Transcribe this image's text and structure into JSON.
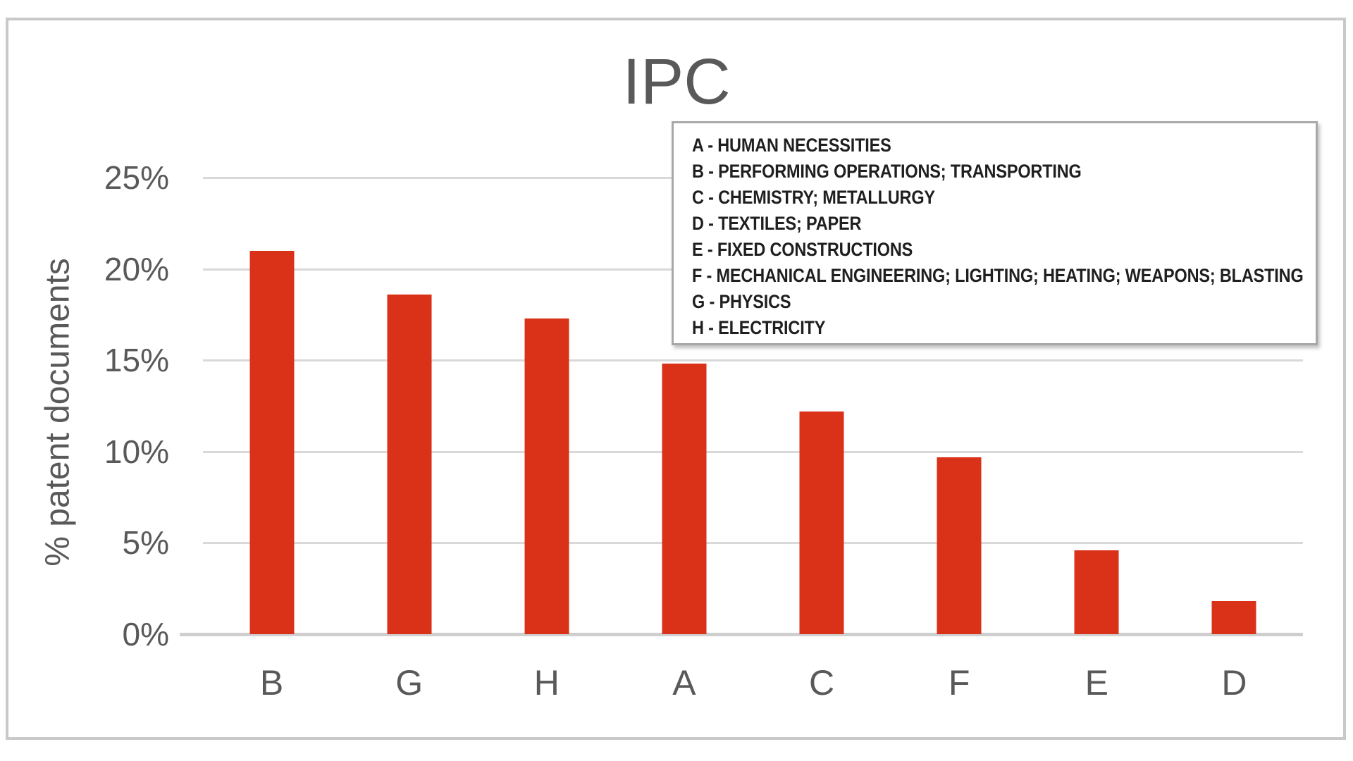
{
  "chart_data": {
    "type": "bar",
    "title": "IPC",
    "xlabel": "",
    "ylabel": "% patent documents",
    "categories": [
      "B",
      "G",
      "H",
      "A",
      "C",
      "F",
      "E",
      "D"
    ],
    "values": [
      21.0,
      18.6,
      17.3,
      14.8,
      12.2,
      9.7,
      4.6,
      1.8
    ],
    "y_ticks": [
      {
        "label": "25%",
        "value": 25
      },
      {
        "label": "20%",
        "value": 20
      },
      {
        "label": "15%",
        "value": 15
      },
      {
        "label": "10%",
        "value": 10
      },
      {
        "label": "5%",
        "value": 5
      },
      {
        "label": "0%",
        "value": 0
      }
    ],
    "ylim": [
      0,
      25
    ],
    "grid": true,
    "legend_position": "top-right",
    "legend_items": [
      "A - HUMAN NECESSITIES",
      "B - PERFORMING OPERATIONS; TRANSPORTING",
      "C - CHEMISTRY; METALLURGY",
      "D - TEXTILES; PAPER",
      "E - FIXED CONSTRUCTIONS",
      "F - MECHANICAL ENGINEERING; LIGHTING; HEATING; WEAPONS; BLASTING",
      "G - PHYSICS",
      "H - ELECTRICITY"
    ]
  },
  "colors": {
    "bar": "#D93218",
    "grid": "#D9D9D9",
    "baseline": "#CFCFCF",
    "axis_text": "#595959",
    "legend_text": "#1F1F1F",
    "legend_border": "#A8A8A8",
    "frame_border": "#C9C9C9"
  }
}
